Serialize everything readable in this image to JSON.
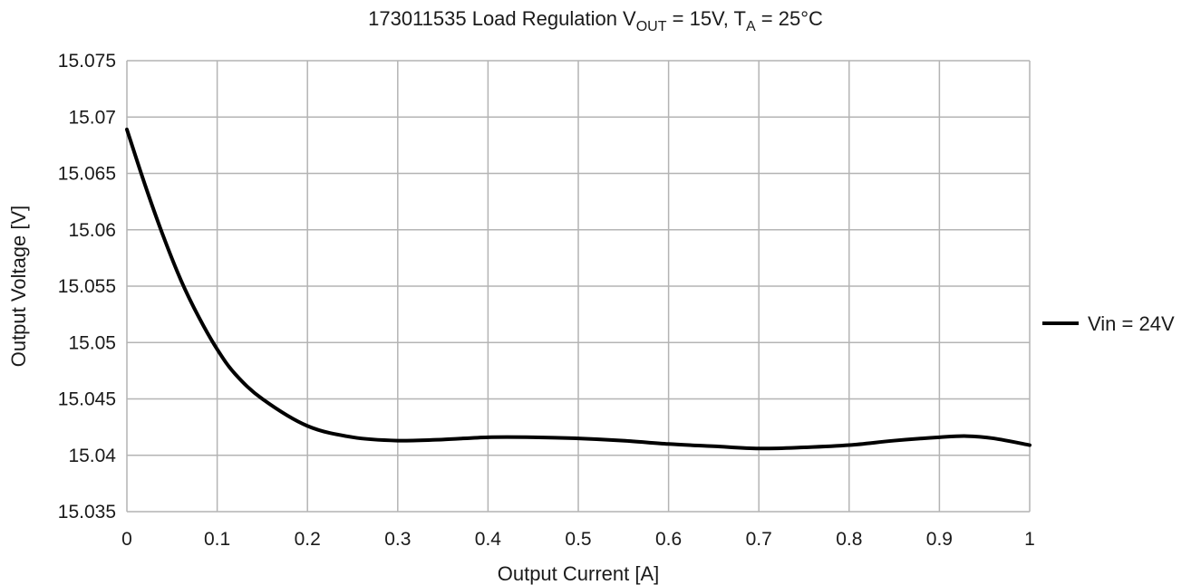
{
  "chart_data": {
    "type": "line",
    "title": {
      "prefix": "173011535  Load Regulation  V",
      "vout_sub": "OUT",
      "middle": " = 15V, T",
      "ta_sub": "A",
      "suffix": " = 25°C"
    },
    "xlabel": "Output Current [A]",
    "ylabel": "Output Voltage [V]",
    "xlim": [
      0,
      1
    ],
    "ylim": [
      15.035,
      15.075
    ],
    "x_ticks": [
      "0",
      "0.1",
      "0.2",
      "0.3",
      "0.4",
      "0.5",
      "0.6",
      "0.7",
      "0.8",
      "0.9",
      "1"
    ],
    "y_ticks": [
      "15.035",
      "15.04",
      "15.045",
      "15.05",
      "15.055",
      "15.06",
      "15.065",
      "15.07",
      "15.075"
    ],
    "grid": true,
    "legend_position": "right",
    "series": [
      {
        "name": "Vin = 24V",
        "color": "#000000",
        "x": [
          0,
          0.02,
          0.04,
          0.06,
          0.08,
          0.1,
          0.12,
          0.15,
          0.2,
          0.25,
          0.3,
          0.35,
          0.4,
          0.45,
          0.5,
          0.55,
          0.6,
          0.65,
          0.7,
          0.75,
          0.8,
          0.85,
          0.9,
          0.93,
          0.96,
          1.0
        ],
        "y": [
          15.0689,
          15.064,
          15.0595,
          15.0555,
          15.0522,
          15.0494,
          15.0472,
          15.045,
          15.0426,
          15.0416,
          15.0413,
          15.0414,
          15.0416,
          15.0416,
          15.0415,
          15.0413,
          15.041,
          15.0408,
          15.0406,
          15.0407,
          15.0409,
          15.0413,
          15.0416,
          15.0417,
          15.0415,
          15.0409
        ]
      }
    ]
  }
}
